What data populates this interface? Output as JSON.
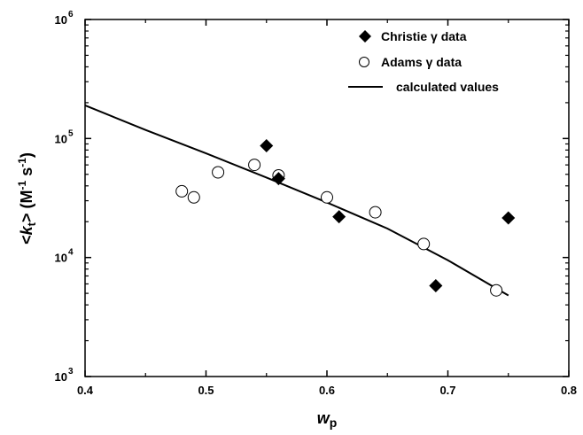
{
  "chart_data": {
    "type": "scatter",
    "xlabel_italic": "w",
    "xlabel_sub": "p",
    "ylabel_parts": {
      "open": "<",
      "k": "k",
      "k_sub": "t",
      "close": ">",
      "units_start": " (M",
      "units_exp1": "-1",
      "units_mid": " s",
      "units_exp2": "-1",
      "units_end": ")"
    },
    "x_scale": "linear",
    "y_scale": "log",
    "xlim": [
      0.4,
      0.8
    ],
    "ylim": [
      1000,
      1000000
    ],
    "x_ticks": [
      "0.4",
      "0.5",
      "0.6",
      "0.7",
      "0.8"
    ],
    "y_ticks": [
      {
        "value": 1000,
        "base": "10",
        "exp": "3"
      },
      {
        "value": 10000,
        "base": "10",
        "exp": "4"
      },
      {
        "value": 100000,
        "base": "10",
        "exp": "5"
      },
      {
        "value": 1000000,
        "base": "10",
        "exp": "6"
      }
    ],
    "grid": false,
    "legend_position": "top-right",
    "series": [
      {
        "name": "Christie γ data",
        "marker": "filled-diamond",
        "color": "#000000",
        "points": [
          {
            "x": 0.55,
            "y": 87000
          },
          {
            "x": 0.56,
            "y": 46000
          },
          {
            "x": 0.61,
            "y": 22000
          },
          {
            "x": 0.69,
            "y": 5800
          },
          {
            "x": 0.75,
            "y": 21500
          }
        ]
      },
      {
        "name": "Adams γ data",
        "marker": "open-circle",
        "color": "#000000",
        "points": [
          {
            "x": 0.48,
            "y": 36000
          },
          {
            "x": 0.49,
            "y": 32000
          },
          {
            "x": 0.51,
            "y": 52000
          },
          {
            "x": 0.54,
            "y": 60000
          },
          {
            "x": 0.56,
            "y": 49000
          },
          {
            "x": 0.6,
            "y": 32000
          },
          {
            "x": 0.64,
            "y": 24000
          },
          {
            "x": 0.68,
            "y": 13000
          },
          {
            "x": 0.74,
            "y": 5300
          }
        ]
      },
      {
        "name": "calculated values",
        "marker": "line",
        "color": "#000000",
        "points": [
          {
            "x": 0.4,
            "y": 190000
          },
          {
            "x": 0.45,
            "y": 118000
          },
          {
            "x": 0.5,
            "y": 75000
          },
          {
            "x": 0.55,
            "y": 47000
          },
          {
            "x": 0.6,
            "y": 29000
          },
          {
            "x": 0.65,
            "y": 17500
          },
          {
            "x": 0.7,
            "y": 9500
          },
          {
            "x": 0.75,
            "y": 4800
          }
        ]
      }
    ]
  }
}
